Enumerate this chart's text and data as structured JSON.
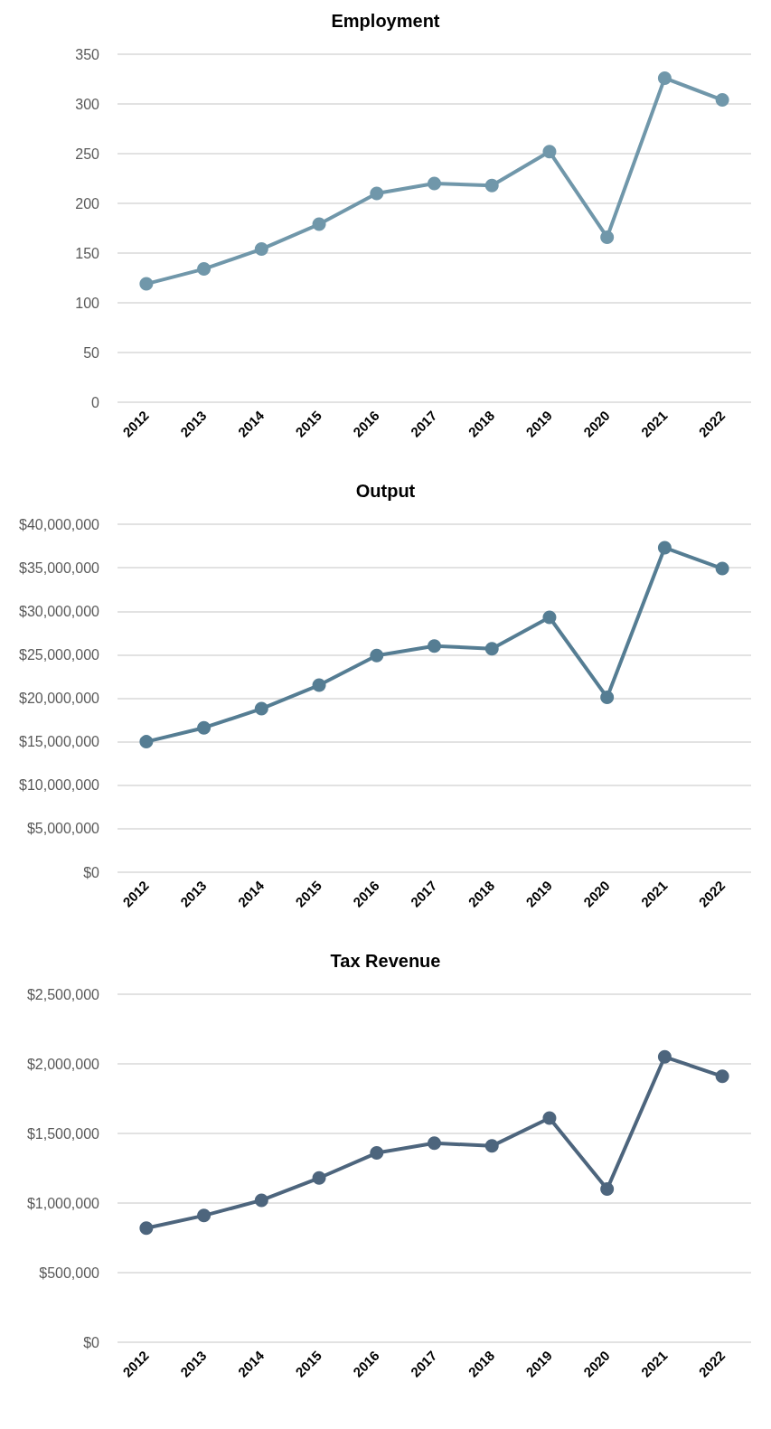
{
  "chart_data": [
    {
      "type": "line",
      "title": "Employment",
      "categories": [
        "2012",
        "2013",
        "2014",
        "2015",
        "2016",
        "2017",
        "2018",
        "2019",
        "2020",
        "2021",
        "2022"
      ],
      "series": [
        {
          "color": "#7097aa",
          "values": [
            119,
            134,
            154,
            179,
            210,
            220,
            218,
            252,
            166,
            326,
            304
          ]
        }
      ],
      "ylim": [
        0,
        350
      ],
      "yticks": [
        0,
        50,
        100,
        150,
        200,
        250,
        300,
        350
      ],
      "grid": "y",
      "marker": "circle"
    },
    {
      "type": "line",
      "title": "Output",
      "categories": [
        "2012",
        "2013",
        "2014",
        "2015",
        "2016",
        "2017",
        "2018",
        "2019",
        "2020",
        "2021",
        "2022"
      ],
      "series": [
        {
          "color": "#557d93",
          "values": [
            15000000,
            16600000,
            18800000,
            21500000,
            24900000,
            26000000,
            25700000,
            29300000,
            20100000,
            37300000,
            34900000
          ]
        }
      ],
      "ylim": [
        0,
        40000000
      ],
      "yticks": [
        {
          "value": 0,
          "label": "$0"
        },
        {
          "value": 5000000,
          "label": "$5,000,000"
        },
        {
          "value": 10000000,
          "label": "$10,000,000"
        },
        {
          "value": 15000000,
          "label": "$15,000,000"
        },
        {
          "value": 20000000,
          "label": "$20,000,000"
        },
        {
          "value": 25000000,
          "label": "$25,000,000"
        },
        {
          "value": 30000000,
          "label": "$30,000,000"
        },
        {
          "value": 35000000,
          "label": "$35,000,000"
        },
        {
          "value": 40000000,
          "label": "$40,000,000"
        }
      ],
      "grid": "y",
      "marker": "circle"
    },
    {
      "type": "line",
      "title": "Tax Revenue",
      "categories": [
        "2012",
        "2013",
        "2014",
        "2015",
        "2016",
        "2017",
        "2018",
        "2019",
        "2020",
        "2021",
        "2022"
      ],
      "series": [
        {
          "color": "#4d657d",
          "values": [
            820000,
            910000,
            1020000,
            1180000,
            1360000,
            1430000,
            1410000,
            1610000,
            1100000,
            2050000,
            1910000
          ]
        }
      ],
      "ylim": [
        0,
        2500000
      ],
      "yticks": [
        {
          "value": 0,
          "label": "$0"
        },
        {
          "value": 500000,
          "label": "$500,000"
        },
        {
          "value": 1000000,
          "label": "$1,000,000"
        },
        {
          "value": 1500000,
          "label": "$1,500,000"
        },
        {
          "value": 2000000,
          "label": "$2,000,000"
        },
        {
          "value": 2500000,
          "label": "$2,500,000"
        }
      ],
      "grid": "y",
      "marker": "circle"
    }
  ]
}
